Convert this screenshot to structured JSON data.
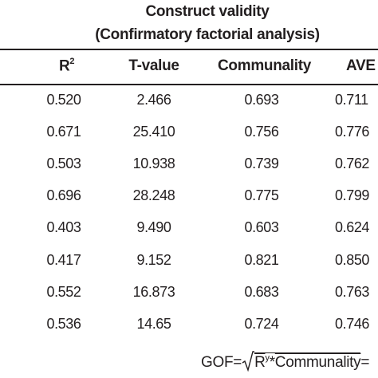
{
  "title_line1": "Construct validity",
  "title_line2": "(Confirmatory factorial analysis)",
  "headers": {
    "r2": "R",
    "r2_sup": "2",
    "t_value": "T-value",
    "communality": "Communality",
    "ave": "AVE"
  },
  "rows": [
    {
      "r2": "0.520",
      "t": "2.466",
      "communality": "0.693",
      "ave": "0.711"
    },
    {
      "r2": "0.671",
      "t": "25.410",
      "communality": "0.756",
      "ave": "0.776"
    },
    {
      "r2": "0.503",
      "t": "10.938",
      "communality": "0.739",
      "ave": "0.762"
    },
    {
      "r2": "0.696",
      "t": "28.248",
      "communality": "0.775",
      "ave": "0.799"
    },
    {
      "r2": "0.403",
      "t": "9.490",
      "communality": "0.603",
      "ave": "0.624"
    },
    {
      "r2": "0.417",
      "t": "9.152",
      "communality": "0.821",
      "ave": "0.850"
    },
    {
      "r2": "0.552",
      "t": "16.873",
      "communality": "0.683",
      "ave": "0.763"
    },
    {
      "r2": "0.536",
      "t": "14.65",
      "communality": "0.724",
      "ave": "0.746"
    }
  ],
  "formula": {
    "lhs": "GOF=",
    "r": "R",
    "r_sup": "y",
    "op": "*",
    "term": "Communality",
    "tail": "="
  }
}
